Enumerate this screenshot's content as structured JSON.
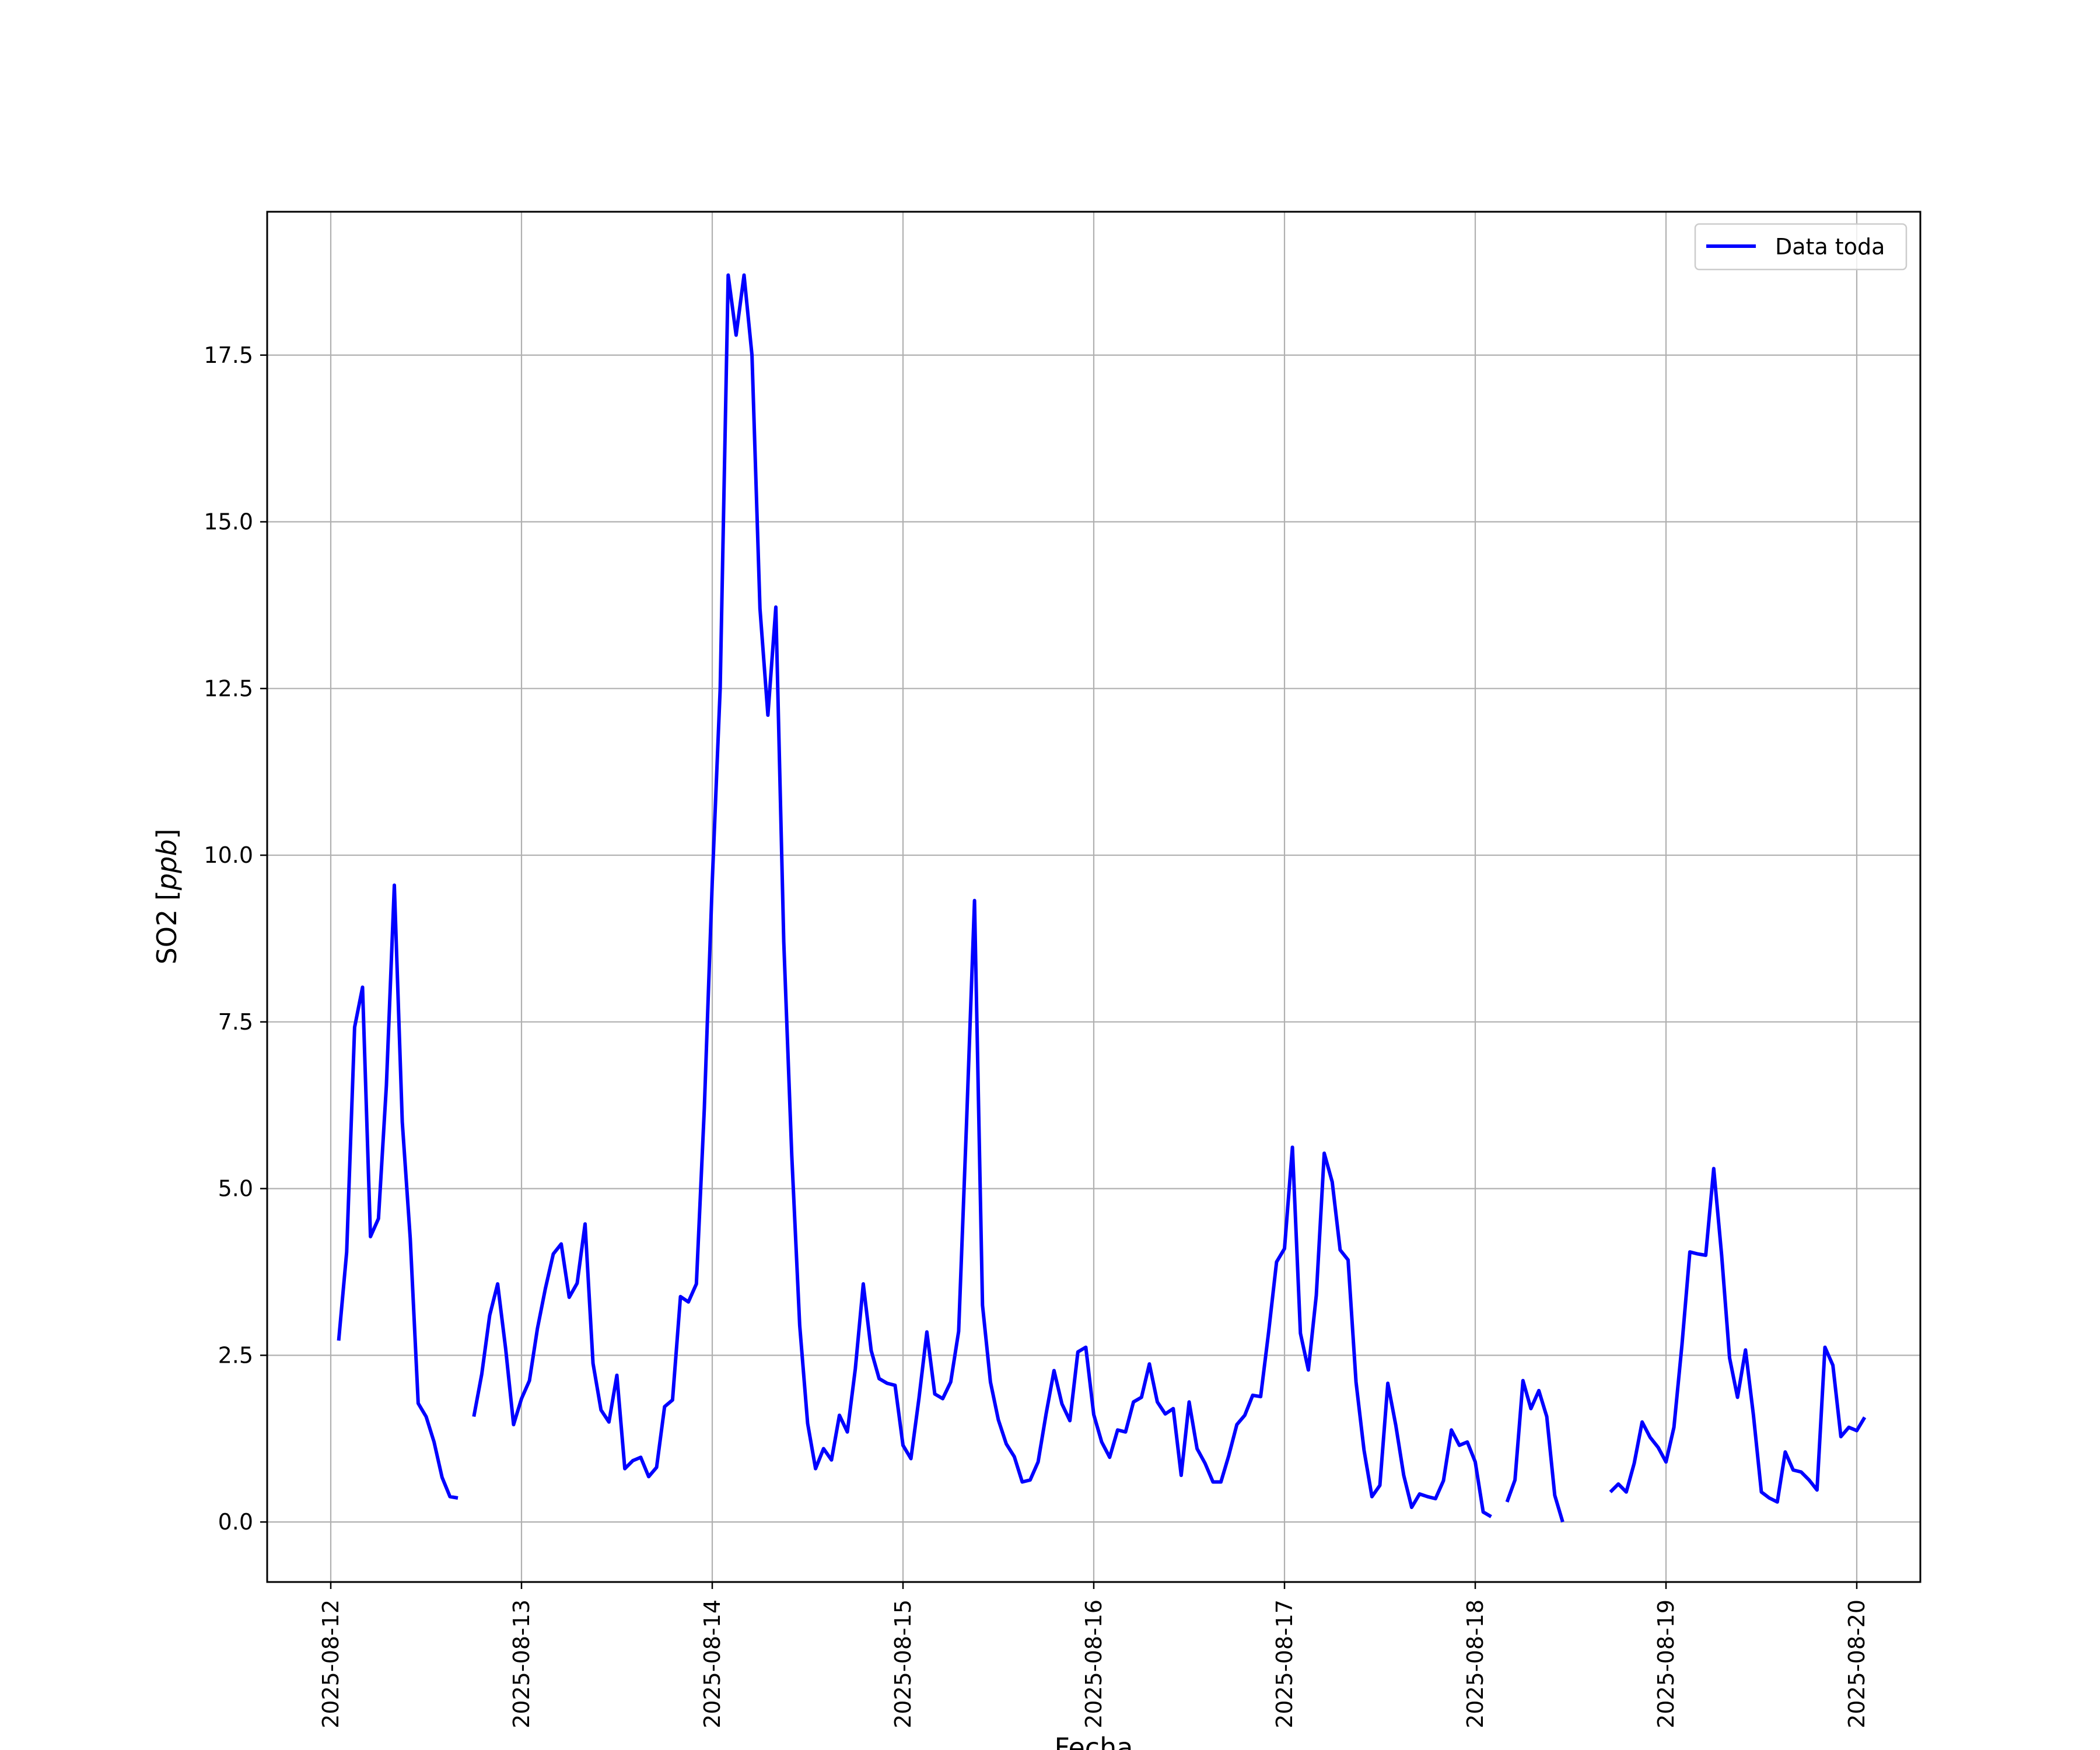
{
  "chart_data": {
    "type": "line",
    "title": "",
    "xlabel": "Fecha",
    "ylabel_text": "SO2 [",
    "ylabel_unit": "ppb",
    "ylabel_close": "]",
    "xlim": [
      "2025-08-11T16:00",
      "2025-08-20T08:00"
    ],
    "ylim": [
      -0.9,
      19.65
    ],
    "x_ticks": [
      "2025-08-12",
      "2025-08-13",
      "2025-08-14",
      "2025-08-15",
      "2025-08-16",
      "2025-08-17",
      "2025-08-18",
      "2025-08-19",
      "2025-08-20"
    ],
    "y_ticks": [
      "0.0",
      "2.5",
      "5.0",
      "7.5",
      "10.0",
      "12.5",
      "15.0",
      "17.5"
    ],
    "y_tick_values": [
      0,
      2.5,
      5,
      7.5,
      10,
      12.5,
      15,
      17.5
    ],
    "grid": true,
    "legend_position": "top-right",
    "series": [
      {
        "name": "Data toda",
        "color": "#0000ff",
        "x_start": "2025-08-12T01:00",
        "x_step_hours": 1,
        "values": [
          2.72,
          4.05,
          7.42,
          8.02,
          4.28,
          4.55,
          6.55,
          9.55,
          6.0,
          4.25,
          1.78,
          1.58,
          1.2,
          0.67,
          0.38,
          0.36,
          null,
          1.58,
          2.22,
          3.1,
          3.57,
          2.6,
          1.46,
          1.85,
          2.12,
          2.9,
          3.5,
          4.02,
          4.17,
          3.37,
          3.58,
          4.47,
          2.38,
          1.68,
          1.5,
          2.2,
          0.8,
          0.92,
          0.97,
          0.68,
          0.82,
          1.73,
          1.83,
          3.38,
          3.3,
          3.57,
          6.2,
          9.6,
          12.5,
          18.7,
          17.8,
          18.7,
          17.5,
          13.7,
          12.1,
          13.72,
          8.7,
          5.5,
          2.95,
          1.48,
          0.8,
          1.1,
          0.93,
          1.6,
          1.35,
          2.3,
          3.57,
          2.57,
          2.15,
          2.08,
          2.05,
          1.15,
          0.95,
          1.85,
          2.85,
          1.92,
          1.85,
          2.1,
          2.86,
          6.0,
          9.32,
          3.25,
          2.1,
          1.53,
          1.17,
          0.98,
          0.6,
          0.63,
          0.9,
          1.62,
          2.27,
          1.77,
          1.52,
          2.55,
          2.62,
          1.61,
          1.2,
          0.97,
          1.38,
          1.35,
          1.8,
          1.87,
          2.37,
          1.8,
          1.62,
          1.7,
          0.7,
          1.8,
          1.1,
          0.88,
          0.6,
          0.6,
          1.0,
          1.46,
          1.6,
          1.9,
          1.88,
          2.85,
          3.9,
          4.1,
          5.62,
          2.83,
          2.28,
          3.4,
          5.53,
          5.1,
          4.08,
          3.93,
          2.1,
          1.08,
          0.38,
          0.55,
          2.08,
          1.45,
          0.7,
          0.22,
          0.42,
          0.38,
          0.35,
          0.62,
          1.38,
          1.15,
          1.2,
          0.9,
          0.15,
          0.08,
          null,
          0.3,
          0.63,
          2.12,
          1.7,
          1.97,
          1.58,
          0.4,
          0.0,
          null,
          null,
          null,
          null,
          null,
          0.45,
          0.57,
          0.45,
          0.88,
          1.5,
          1.27,
          1.12,
          0.9,
          1.42,
          2.65,
          4.05,
          4.02,
          4.0,
          5.3,
          4.0,
          2.46,
          1.87,
          2.58,
          1.6,
          0.45,
          0.36,
          0.3,
          1.05,
          0.78,
          0.75,
          0.63,
          0.48,
          2.62,
          2.35,
          1.28,
          1.42,
          1.37,
          1.57
        ]
      }
    ]
  }
}
